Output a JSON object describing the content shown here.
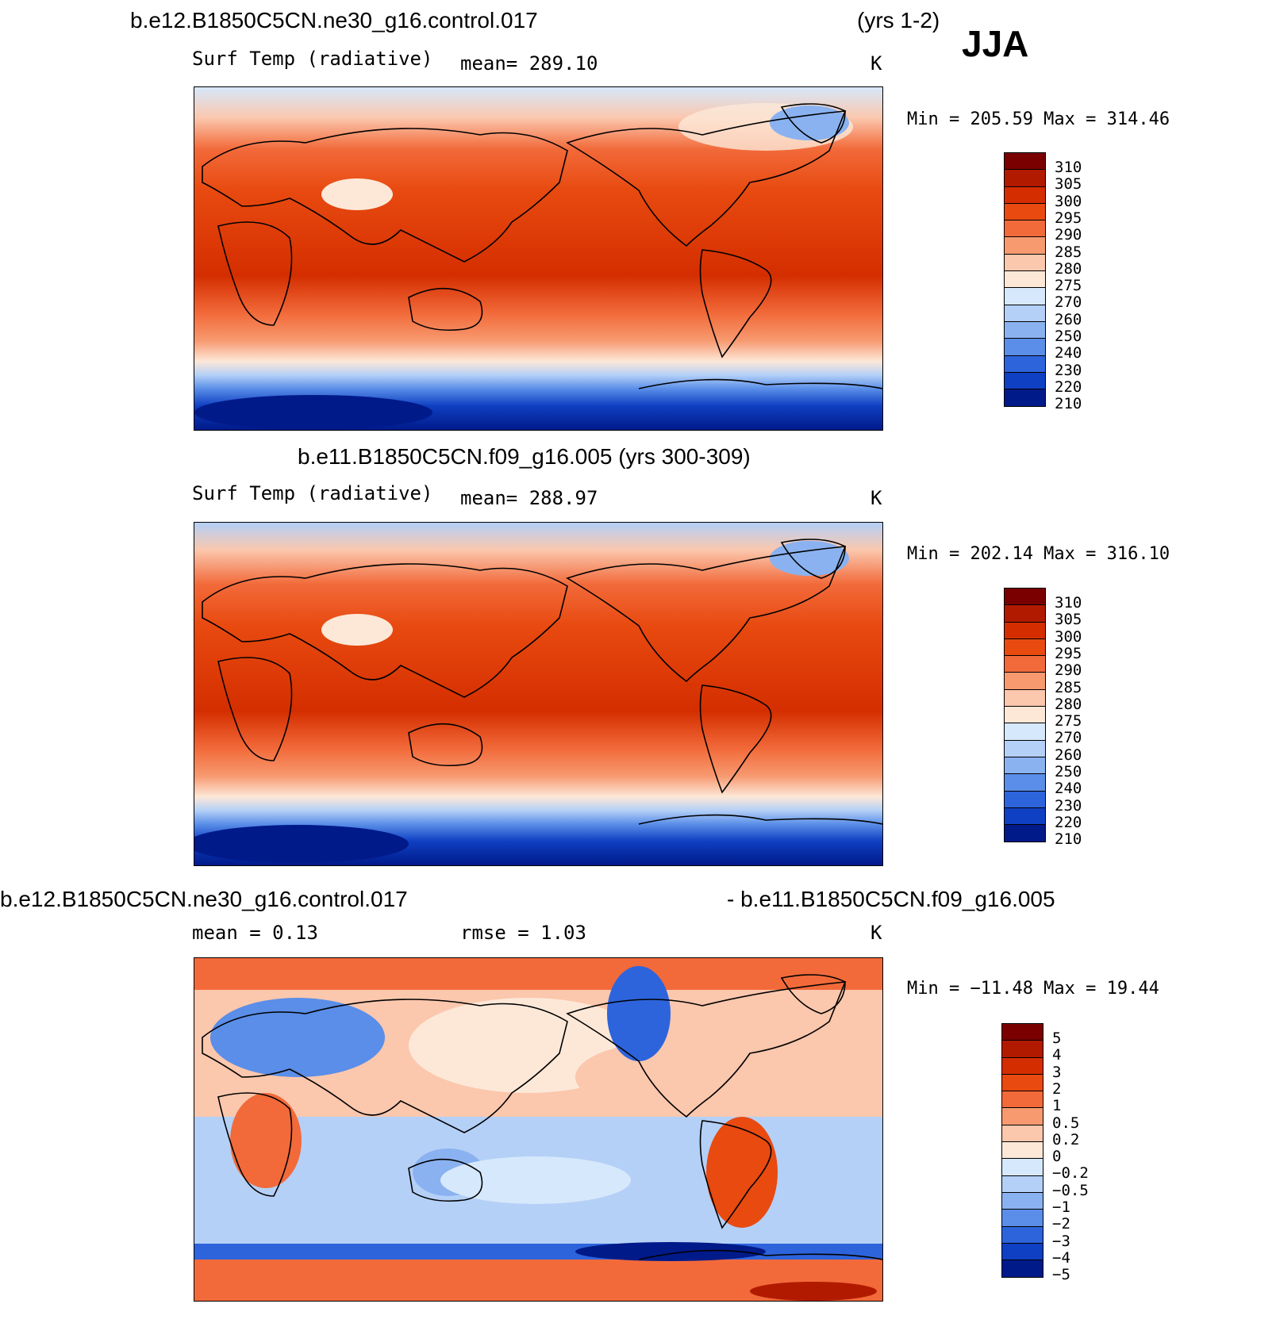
{
  "season": "JJA",
  "panels": [
    {
      "title": "b.e12.B1850C5CN.ne30_g16.control.017",
      "years": "(yrs 1-2)",
      "variable": "Surf Temp (radiative)",
      "stat": "mean= 289.10",
      "units": "K",
      "minmax": "Min = 205.59 Max = 314.46",
      "colorbar": [
        "310",
        "305",
        "300",
        "295",
        "290",
        "285",
        "280",
        "275",
        "270",
        "260",
        "250",
        "240",
        "230",
        "220",
        "210"
      ]
    },
    {
      "title": "b.e11.B1850C5CN.f09_g16.005 (yrs 300-309)",
      "variable": "Surf Temp (radiative)",
      "stat": "mean= 288.97",
      "units": "K",
      "minmax": "Min = 202.14 Max = 316.10",
      "colorbar": [
        "310",
        "305",
        "300",
        "295",
        "290",
        "285",
        "280",
        "275",
        "270",
        "260",
        "250",
        "240",
        "230",
        "220",
        "210"
      ]
    },
    {
      "title_left": "b.e12.B1850C5CN.ne30_g16.control.017",
      "title_right": "- b.e11.B1850C5CN.f09_g16.005",
      "stat_mean": "mean =    0.13",
      "stat_rmse": "rmse =    1.03",
      "units": "K",
      "minmax": "Min = −11.48 Max =  19.44",
      "colorbar": [
        "5",
        "4",
        "3",
        "2",
        "1",
        "0.5",
        "0.2",
        "0",
        "−0.2",
        "−0.5",
        "−1",
        "−2",
        "−3",
        "−4",
        "−5"
      ]
    }
  ],
  "colors": {
    "warm_scale": [
      "#7a0000",
      "#b21a00",
      "#d42e00",
      "#e84a10",
      "#f26a3a",
      "#f79a70",
      "#fbc7ad",
      "#fde8d8",
      "#d6e8fb",
      "#b4d0f7",
      "#8ab2f0",
      "#5a8ee8",
      "#2d64dc",
      "#0f3fc2",
      "#001a8a"
    ],
    "diff_scale": [
      "#7a0000",
      "#b21a00",
      "#d42e00",
      "#e84a10",
      "#f26a3a",
      "#f79a70",
      "#fbc7ad",
      "#fde8d8",
      "#d6e8fb",
      "#b4d0f7",
      "#8ab2f0",
      "#5a8ee8",
      "#2d64dc",
      "#0f3fc2",
      "#001a8a"
    ]
  }
}
